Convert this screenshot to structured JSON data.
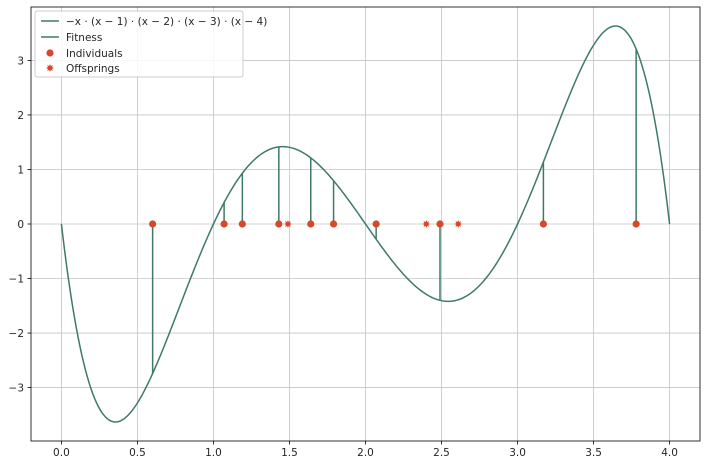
{
  "chart_data": {
    "type": "line",
    "function_expression": "-x*(x-1)*(x-2)*(x-3)*(x-4)",
    "xlim": [
      -0.2,
      4.2
    ],
    "ylim": [
      -3.98,
      3.98
    ],
    "x_ticks": [
      0.0,
      0.5,
      1.0,
      1.5,
      2.0,
      2.5,
      3.0,
      3.5,
      4.0
    ],
    "x_tick_labels": [
      "0.0",
      "0.5",
      "1.0",
      "1.5",
      "2.0",
      "2.5",
      "3.0",
      "3.5",
      "4.0"
    ],
    "y_ticks": [
      -3,
      -2,
      -1,
      0,
      1,
      2,
      3
    ],
    "y_tick_labels": [
      "−3",
      "−2",
      "−1",
      "0",
      "1",
      "2",
      "3"
    ],
    "grid": true,
    "legend_position": "top-left",
    "legend": [
      {
        "label": "−x · (x − 1) · (x − 2) · (x − 3) · (x − 4)",
        "kind": "line"
      },
      {
        "label": "Fitness",
        "kind": "line"
      },
      {
        "label": "Individuals",
        "kind": "dot"
      },
      {
        "label": "Offsprings",
        "kind": "star"
      }
    ],
    "individuals_x": [
      0.6,
      1.07,
      1.19,
      1.43,
      1.64,
      1.79,
      2.07,
      2.49,
      3.17,
      3.78
    ],
    "offsprings_x": [
      1.49,
      2.4,
      2.61
    ],
    "colors": {
      "curve": "#3f7a66",
      "fitness": "#3f7a66",
      "individual": "#d6472b",
      "offspring": "#d6472b",
      "grid": "#c4c4c4",
      "axes": "#000000"
    }
  }
}
